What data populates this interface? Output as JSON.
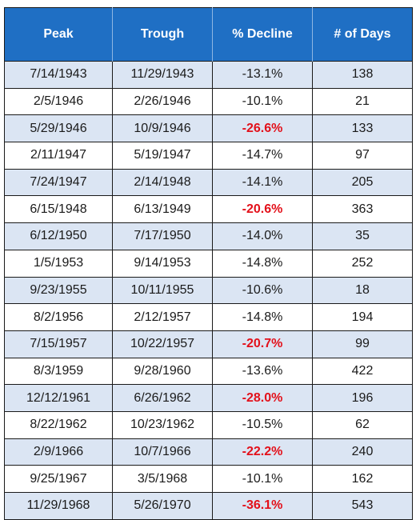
{
  "table": {
    "headers": [
      "Peak",
      "Trough",
      "% Decline",
      "# of Days"
    ],
    "highlight_color": "#e3101a",
    "header_color": "#1f6fc4",
    "rows": [
      {
        "peak": "7/14/1943",
        "trough": "11/29/1943",
        "decline": "-13.1%",
        "days": "138",
        "highlight": false
      },
      {
        "peak": "2/5/1946",
        "trough": "2/26/1946",
        "decline": "-10.1%",
        "days": "21",
        "highlight": false
      },
      {
        "peak": "5/29/1946",
        "trough": "10/9/1946",
        "decline": "-26.6%",
        "days": "133",
        "highlight": true
      },
      {
        "peak": "2/11/1947",
        "trough": "5/19/1947",
        "decline": "-14.7%",
        "days": "97",
        "highlight": false
      },
      {
        "peak": "7/24/1947",
        "trough": "2/14/1948",
        "decline": "-14.1%",
        "days": "205",
        "highlight": false
      },
      {
        "peak": "6/15/1948",
        "trough": "6/13/1949",
        "decline": "-20.6%",
        "days": "363",
        "highlight": true
      },
      {
        "peak": "6/12/1950",
        "trough": "7/17/1950",
        "decline": "-14.0%",
        "days": "35",
        "highlight": false
      },
      {
        "peak": "1/5/1953",
        "trough": "9/14/1953",
        "decline": "-14.8%",
        "days": "252",
        "highlight": false
      },
      {
        "peak": "9/23/1955",
        "trough": "10/11/1955",
        "decline": "-10.6%",
        "days": "18",
        "highlight": false
      },
      {
        "peak": "8/2/1956",
        "trough": "2/12/1957",
        "decline": "-14.8%",
        "days": "194",
        "highlight": false
      },
      {
        "peak": "7/15/1957",
        "trough": "10/22/1957",
        "decline": "-20.7%",
        "days": "99",
        "highlight": true
      },
      {
        "peak": "8/3/1959",
        "trough": "9/28/1960",
        "decline": "-13.6%",
        "days": "422",
        "highlight": false
      },
      {
        "peak": "12/12/1961",
        "trough": "6/26/1962",
        "decline": "-28.0%",
        "days": "196",
        "highlight": true
      },
      {
        "peak": "8/22/1962",
        "trough": "10/23/1962",
        "decline": "-10.5%",
        "days": "62",
        "highlight": false
      },
      {
        "peak": "2/9/1966",
        "trough": "10/7/1966",
        "decline": "-22.2%",
        "days": "240",
        "highlight": true
      },
      {
        "peak": "9/25/1967",
        "trough": "3/5/1968",
        "decline": "-10.1%",
        "days": "162",
        "highlight": false
      },
      {
        "peak": "11/29/1968",
        "trough": "5/26/1970",
        "decline": "-36.1%",
        "days": "543",
        "highlight": true
      }
    ]
  }
}
